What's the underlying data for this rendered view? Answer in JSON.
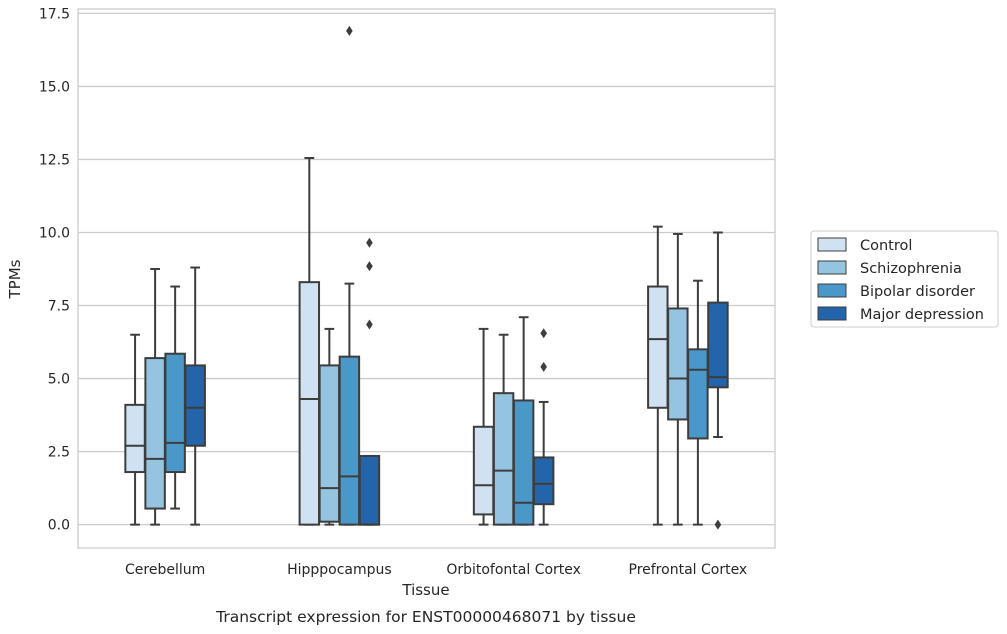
{
  "chart_data": {
    "type": "box",
    "title": "",
    "caption": "Transcript expression for ENST00000468071 by tissue",
    "xlabel": "Tissue",
    "ylabel": "TPMs",
    "ylim": [
      -0.8,
      17.65
    ],
    "yticks": [
      "0.0",
      "2.5",
      "5.0",
      "7.5",
      "10.0",
      "12.5",
      "15.0",
      "17.5"
    ],
    "ytick_values": [
      0,
      2.5,
      5,
      7.5,
      10,
      12.5,
      15,
      17.5
    ],
    "grid": "horizontal",
    "legend_position": "right",
    "categories": [
      "Cerebellum",
      "Hipppocampus",
      "Orbitofontal Cortex",
      "Prefrontal Cortex"
    ],
    "series": [
      {
        "name": "Control",
        "color": "#d0e1f2",
        "boxes": [
          {
            "whislo": 0.0,
            "q1": 1.8,
            "med": 2.7,
            "q3": 4.1,
            "whishi": 6.5,
            "fliers": []
          },
          {
            "whislo": 0.0,
            "q1": 0.0,
            "med": 4.3,
            "q3": 8.3,
            "whishi": 12.55,
            "fliers": []
          },
          {
            "whislo": 0.0,
            "q1": 0.35,
            "med": 1.35,
            "q3": 3.35,
            "whishi": 6.7,
            "fliers": []
          },
          {
            "whislo": 0.0,
            "q1": 4.0,
            "med": 6.35,
            "q3": 8.15,
            "whishi": 10.2,
            "fliers": []
          }
        ]
      },
      {
        "name": "Schizophrenia",
        "color": "#94c4df",
        "boxes": [
          {
            "whislo": 0.0,
            "q1": 0.55,
            "med": 2.25,
            "q3": 5.7,
            "whishi": 8.75,
            "fliers": []
          },
          {
            "whislo": 0.0,
            "q1": 0.1,
            "med": 1.25,
            "q3": 5.45,
            "whishi": 6.7,
            "fliers": []
          },
          {
            "whislo": 0.0,
            "q1": 0.0,
            "med": 1.85,
            "q3": 4.5,
            "whishi": 6.5,
            "fliers": []
          },
          {
            "whislo": 0.0,
            "q1": 3.6,
            "med": 5.0,
            "q3": 7.4,
            "whishi": 9.95,
            "fliers": []
          }
        ]
      },
      {
        "name": "Bipolar disorder",
        "color": "#4a98c9",
        "boxes": [
          {
            "whislo": 0.55,
            "q1": 1.8,
            "med": 2.8,
            "q3": 5.85,
            "whishi": 8.15,
            "fliers": []
          },
          {
            "whislo": 0.0,
            "q1": 0.0,
            "med": 1.65,
            "q3": 5.75,
            "whishi": 8.25,
            "fliers": [
              16.9
            ]
          },
          {
            "whislo": 0.0,
            "q1": 0.0,
            "med": 0.75,
            "q3": 4.25,
            "whishi": 7.1,
            "fliers": []
          },
          {
            "whislo": 0.0,
            "q1": 2.95,
            "med": 5.3,
            "q3": 6.0,
            "whishi": 8.35,
            "fliers": []
          }
        ]
      },
      {
        "name": "Major depression",
        "color": "#2364aa",
        "boxes": [
          {
            "whislo": 0.0,
            "q1": 2.7,
            "med": 4.0,
            "q3": 5.45,
            "whishi": 8.8,
            "fliers": []
          },
          {
            "whislo": 0.0,
            "q1": 0.0,
            "med": 0.0,
            "q3": 2.35,
            "whishi": 2.35,
            "fliers": [
              6.85,
              8.85,
              9.65
            ]
          },
          {
            "whislo": 0.0,
            "q1": 0.7,
            "med": 1.4,
            "q3": 2.3,
            "whishi": 4.2,
            "fliers": [
              5.4,
              6.55
            ]
          },
          {
            "whislo": 3.0,
            "q1": 4.7,
            "med": 5.05,
            "q3": 7.6,
            "whishi": 10.0,
            "fliers": [
              0.0
            ]
          }
        ]
      }
    ]
  }
}
